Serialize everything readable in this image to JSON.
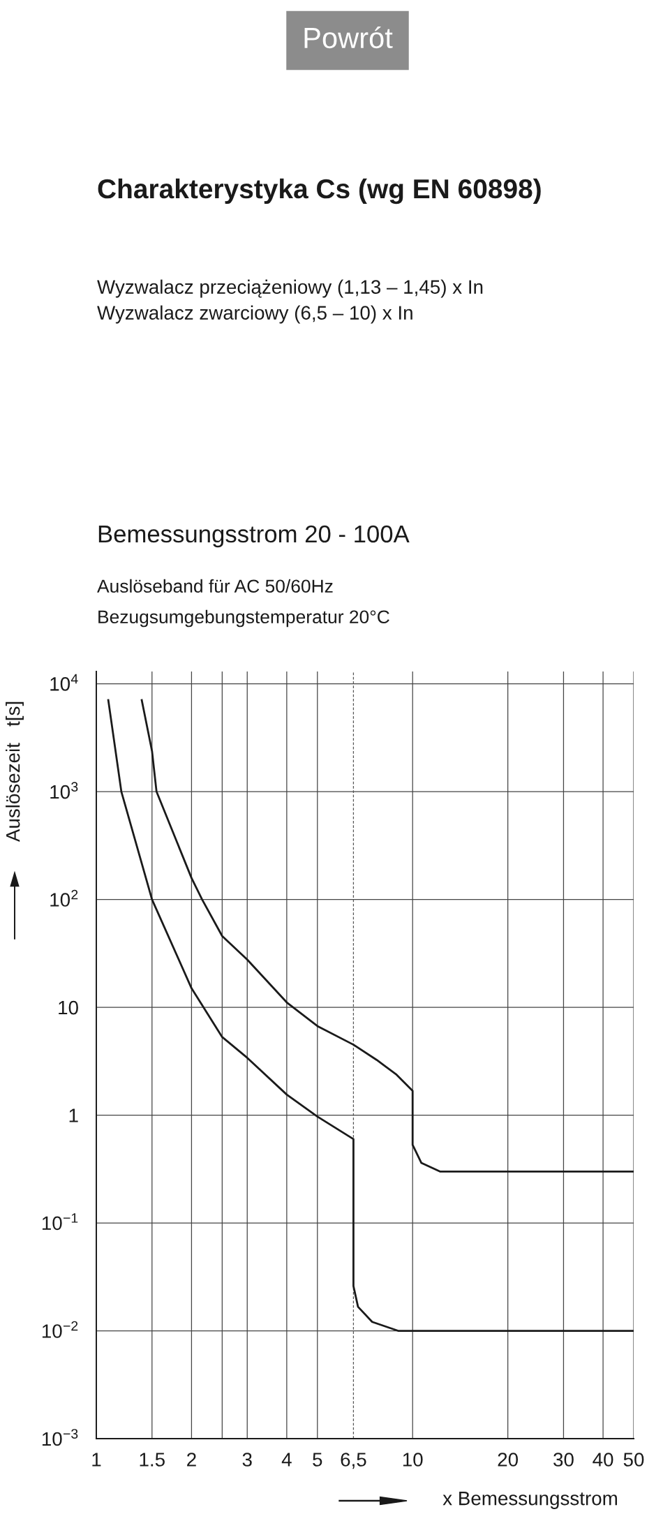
{
  "chart_data": {
    "type": "line",
    "title": "Charakterystyka Cs (wg EN 60898)",
    "subtitle": "Wyzwalacz przeciążeniowy (1,13 – 1,45) x In\nWyzwalacz zwarciowy (6,5 – 10) x In",
    "annotations": [
      "Powrót",
      "Bemessungsstrom 20 - 100A",
      "Auslöseband für AC 50/60Hz",
      "Bezugsumgebungstemperatur 20°C"
    ],
    "xlabel": "x Bemessungsstrom",
    "ylabel": "Auslösezeit   t[s]",
    "log": "xy",
    "xlim": [
      1,
      50
    ],
    "ylim": [
      0.001,
      13000
    ],
    "xticks": [
      1,
      1.5,
      2,
      {
        "value": 2.5,
        "label": null
      },
      3,
      4,
      5,
      {
        "value": 6.5,
        "label": "6,5"
      },
      10,
      20,
      30,
      40,
      50
    ],
    "yticks": [
      {
        "value": 0.001,
        "label": "10$^{−3}$"
      },
      {
        "value": 0.01,
        "label": "10$^{−2}$"
      },
      {
        "value": 0.1,
        "label": "10$^{−1}$"
      },
      1,
      10,
      {
        "value": 100,
        "label": "10$^{2}$"
      },
      {
        "value": 1000,
        "label": "10$^{3}$"
      },
      {
        "value": 10000,
        "label": "10$^{4}$"
      }
    ],
    "grid": true,
    "ref_lines": [
      {
        "axis": "x",
        "value": 6.5,
        "label": null,
        "color": "#555555",
        "line_style": "dashed"
      }
    ],
    "series": [
      {
        "color": "#1a1a1a",
        "x": [
          1.09,
          1.2,
          1.5,
          2,
          2.5,
          3,
          4,
          5,
          6.5,
          6.5,
          6.72,
          7.45,
          9.0,
          50
        ],
        "values": [
          7200,
          1000,
          100,
          15,
          5.3,
          3.4,
          1.55,
          0.97,
          0.6,
          0.026,
          0.0167,
          0.0121,
          0.01,
          0.01
        ]
      },
      {
        "color": "#1a1a1a",
        "x": [
          1.39,
          1.5,
          1.55,
          2,
          2.16,
          2.5,
          3,
          4,
          5,
          6.5,
          7.7,
          8.9,
          10,
          10,
          10.66,
          12.2,
          50
        ],
        "values": [
          7200,
          2380,
          1000,
          158,
          100,
          45.8,
          27.7,
          11.1,
          6.7,
          4.5,
          3.25,
          2.37,
          1.68,
          0.53,
          0.36,
          0.3,
          0.3
        ]
      }
    ]
  }
}
